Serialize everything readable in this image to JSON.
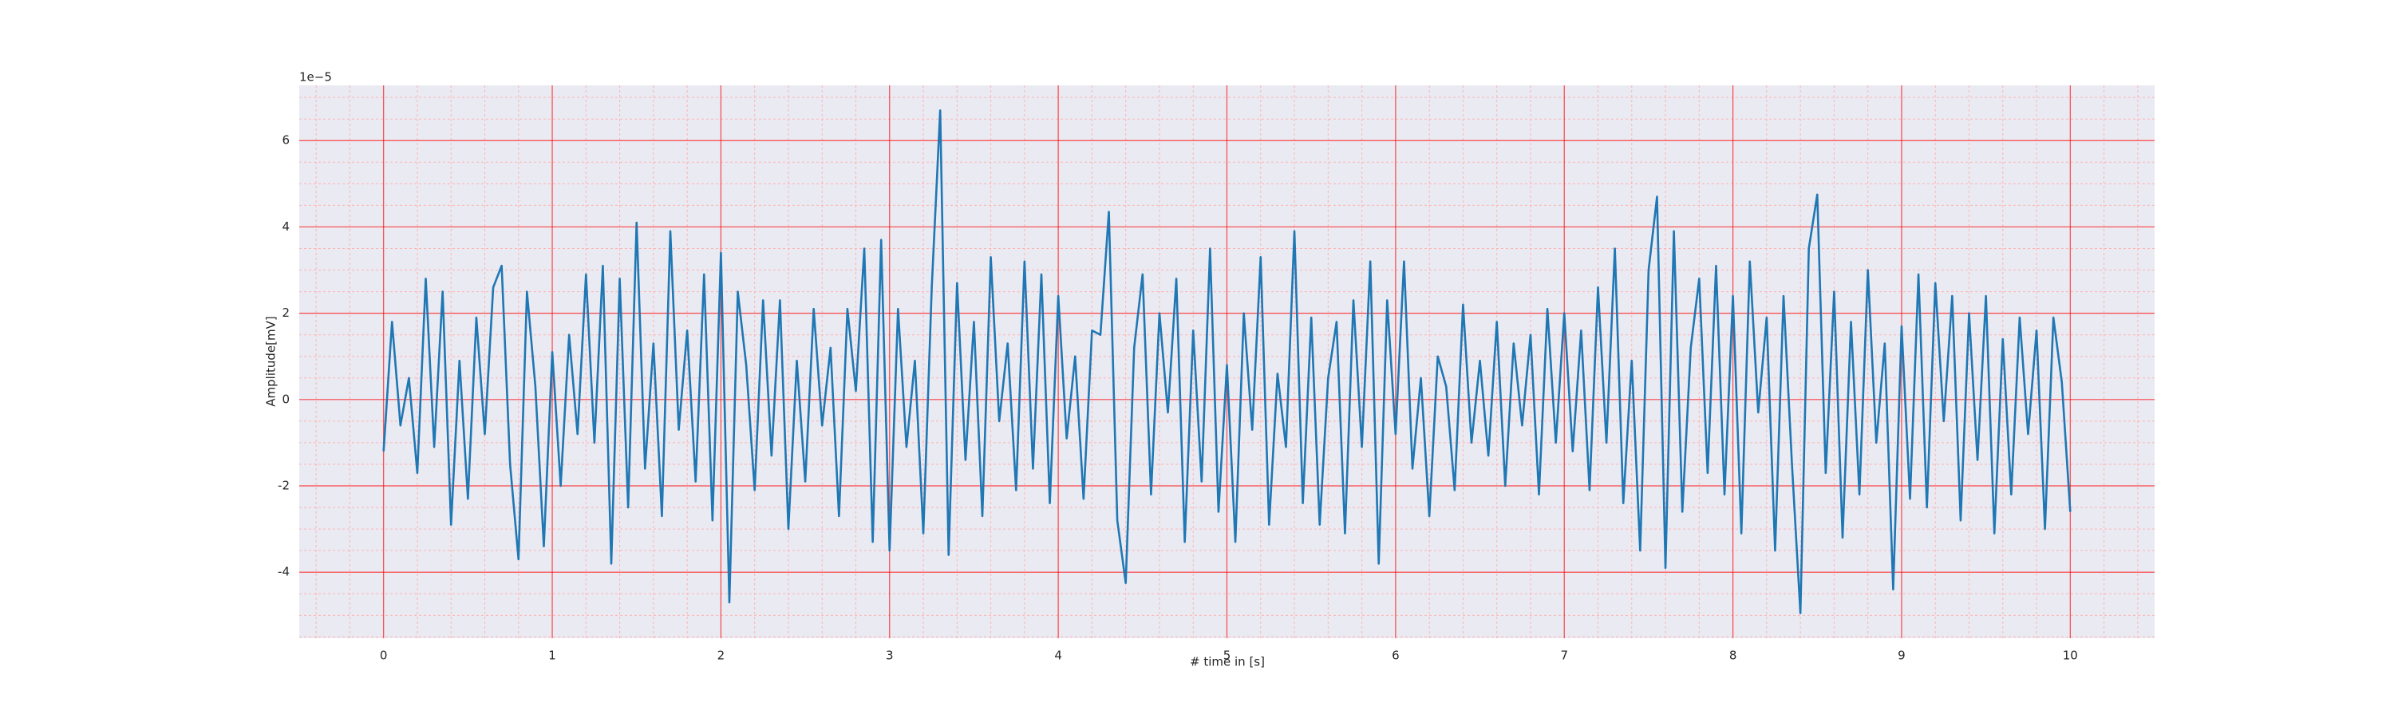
{
  "chart_data": {
    "type": "line",
    "xlabel": "# time in [s]",
    "ylabel": "Amplitude[mV]",
    "y_offset_label": "1e−5",
    "color": "#1f77b4",
    "background": "#eaeaf2",
    "grid_color": "#ff0000",
    "minor_grid_color": "#ffb3b3",
    "grid": true,
    "xlim": [
      -0.5,
      10.5
    ],
    "ylim": [
      -5.53,
      7.28
    ],
    "xticks": [
      0,
      1,
      2,
      3,
      4,
      5,
      6,
      7,
      8,
      9,
      10
    ],
    "yticks": [
      -4,
      -2,
      0,
      2,
      4,
      6
    ],
    "xminor": [
      -0.4,
      -0.2,
      0.2,
      0.4,
      0.6,
      0.8,
      1.2,
      1.4,
      1.6,
      1.8,
      2.2,
      2.4,
      2.6,
      2.8,
      3.2,
      3.4,
      3.6,
      3.8,
      4.2,
      4.4,
      4.6,
      4.8,
      5.2,
      5.4,
      5.6,
      5.8,
      6.2,
      6.4,
      6.6,
      6.8,
      7.2,
      7.4,
      7.6,
      7.8,
      8.2,
      8.4,
      8.6,
      8.8,
      9.2,
      9.4,
      9.6,
      9.8,
      10.2,
      10.4
    ],
    "yminor": [
      -5.5,
      -5,
      -4.5,
      -3.5,
      -3,
      -2.5,
      -1.5,
      -1,
      -0.5,
      0.5,
      1,
      1.5,
      2.5,
      3,
      3.5,
      4.5,
      5,
      5.5,
      6.5,
      7
    ],
    "x": [
      0,
      0.05,
      0.1,
      0.15,
      0.2,
      0.25,
      0.3,
      0.35,
      0.4,
      0.45,
      0.5,
      0.55,
      0.6,
      0.65,
      0.7,
      0.75,
      0.8,
      0.85,
      0.9,
      0.95,
      1,
      1.05,
      1.1,
      1.15,
      1.2,
      1.25,
      1.3,
      1.35,
      1.4,
      1.45,
      1.5,
      1.55,
      1.6,
      1.65,
      1.7,
      1.75,
      1.8,
      1.85,
      1.9,
      1.95,
      2,
      2.05,
      2.1,
      2.15,
      2.2,
      2.25,
      2.3,
      2.35,
      2.4,
      2.45,
      2.5,
      2.55,
      2.6,
      2.65,
      2.7,
      2.75,
      2.8,
      2.85,
      2.9,
      2.95,
      3,
      3.05,
      3.1,
      3.15,
      3.2,
      3.25,
      3.3,
      3.35,
      3.4,
      3.45,
      3.5,
      3.55,
      3.6,
      3.65,
      3.7,
      3.75,
      3.8,
      3.85,
      3.9,
      3.95,
      4,
      4.05,
      4.1,
      4.15,
      4.2,
      4.25,
      4.3,
      4.35,
      4.4,
      4.45,
      4.5,
      4.55,
      4.6,
      4.65,
      4.7,
      4.75,
      4.8,
      4.85,
      4.9,
      4.95,
      5,
      5.05,
      5.1,
      5.15,
      5.2,
      5.25,
      5.3,
      5.35,
      5.4,
      5.45,
      5.5,
      5.55,
      5.6,
      5.65,
      5.7,
      5.75,
      5.8,
      5.85,
      5.9,
      5.95,
      6,
      6.05,
      6.1,
      6.15,
      6.2,
      6.25,
      6.3,
      6.35,
      6.4,
      6.45,
      6.5,
      6.55,
      6.6,
      6.65,
      6.7,
      6.75,
      6.8,
      6.85,
      6.9,
      6.95,
      7,
      7.05,
      7.1,
      7.15,
      7.2,
      7.25,
      7.3,
      7.35,
      7.4,
      7.45,
      7.5,
      7.55,
      7.6,
      7.65,
      7.7,
      7.75,
      7.8,
      7.85,
      7.9,
      7.95,
      8,
      8.05,
      8.1,
      8.15,
      8.2,
      8.25,
      8.3,
      8.35,
      8.4,
      8.45,
      8.5,
      8.55,
      8.6,
      8.65,
      8.7,
      8.75,
      8.8,
      8.85,
      8.9,
      8.95,
      9,
      9.05,
      9.1,
      9.15,
      9.2,
      9.25,
      9.3,
      9.35,
      9.4,
      9.45,
      9.5,
      9.55,
      9.6,
      9.65,
      9.7,
      9.75,
      9.8,
      9.85,
      9.9,
      9.95,
      10
    ],
    "values": [
      -1.2,
      1.8,
      -0.6,
      0.5,
      -1.7,
      2.8,
      -1.1,
      2.5,
      -2.9,
      0.9,
      -2.3,
      1.9,
      -0.8,
      2.6,
      3.1,
      -1.5,
      -3.7,
      2.5,
      0.3,
      -3.4,
      1.1,
      -2.0,
      1.5,
      -0.8,
      2.9,
      -1.0,
      3.1,
      -3.8,
      2.8,
      -2.5,
      4.1,
      -1.6,
      1.3,
      -2.7,
      3.9,
      -0.7,
      1.6,
      -1.9,
      2.9,
      -2.8,
      3.4,
      -4.7,
      2.5,
      0.8,
      -2.1,
      2.3,
      -1.3,
      2.3,
      -3.0,
      0.9,
      -1.9,
      2.1,
      -0.6,
      1.2,
      -2.7,
      2.1,
      0.2,
      3.5,
      -3.3,
      3.7,
      -3.5,
      2.1,
      -1.1,
      0.9,
      -3.1,
      2.6,
      6.7,
      -3.6,
      2.7,
      -1.4,
      1.8,
      -2.7,
      3.3,
      -0.5,
      1.3,
      -2.1,
      3.2,
      -1.6,
      2.9,
      -2.4,
      2.4,
      -0.9,
      1.0,
      -2.3,
      1.6,
      1.5,
      4.35,
      -2.8,
      -4.25,
      1.2,
      2.9,
      -2.2,
      2.0,
      -0.3,
      2.8,
      -3.3,
      1.6,
      -1.9,
      3.5,
      -2.6,
      0.8,
      -3.3,
      2.0,
      -0.7,
      3.3,
      -2.9,
      0.6,
      -1.1,
      3.9,
      -2.4,
      1.9,
      -2.9,
      0.5,
      1.8,
      -3.1,
      2.3,
      -1.1,
      3.2,
      -3.8,
      2.3,
      -0.8,
      3.2,
      -1.6,
      0.5,
      -2.7,
      1.0,
      0.3,
      -2.1,
      2.2,
      -1.0,
      0.9,
      -1.3,
      1.8,
      -2.0,
      1.3,
      -0.6,
      1.5,
      -2.2,
      2.1,
      -1.0,
      2.0,
      -1.2,
      1.6,
      -2.1,
      2.6,
      -1.0,
      3.5,
      -2.4,
      0.9,
      -3.5,
      3.0,
      4.7,
      -3.9,
      3.9,
      -2.6,
      1.2,
      2.8,
      -1.7,
      3.1,
      -2.2,
      2.4,
      -3.1,
      3.2,
      -0.3,
      1.9,
      -3.5,
      2.4,
      -1.5,
      -4.95,
      3.5,
      4.75,
      -1.7,
      2.5,
      -3.2,
      1.8,
      -2.2,
      3.0,
      -1.0,
      1.3,
      -4.4,
      1.7,
      -2.3,
      2.9,
      -2.5,
      2.7,
      -0.5,
      2.4,
      -2.8,
      2.0,
      -1.4,
      2.4,
      -3.1,
      1.4,
      -2.2,
      1.9,
      -0.8,
      1.6,
      -3.0,
      1.9,
      0.4,
      -2.6
    ]
  }
}
